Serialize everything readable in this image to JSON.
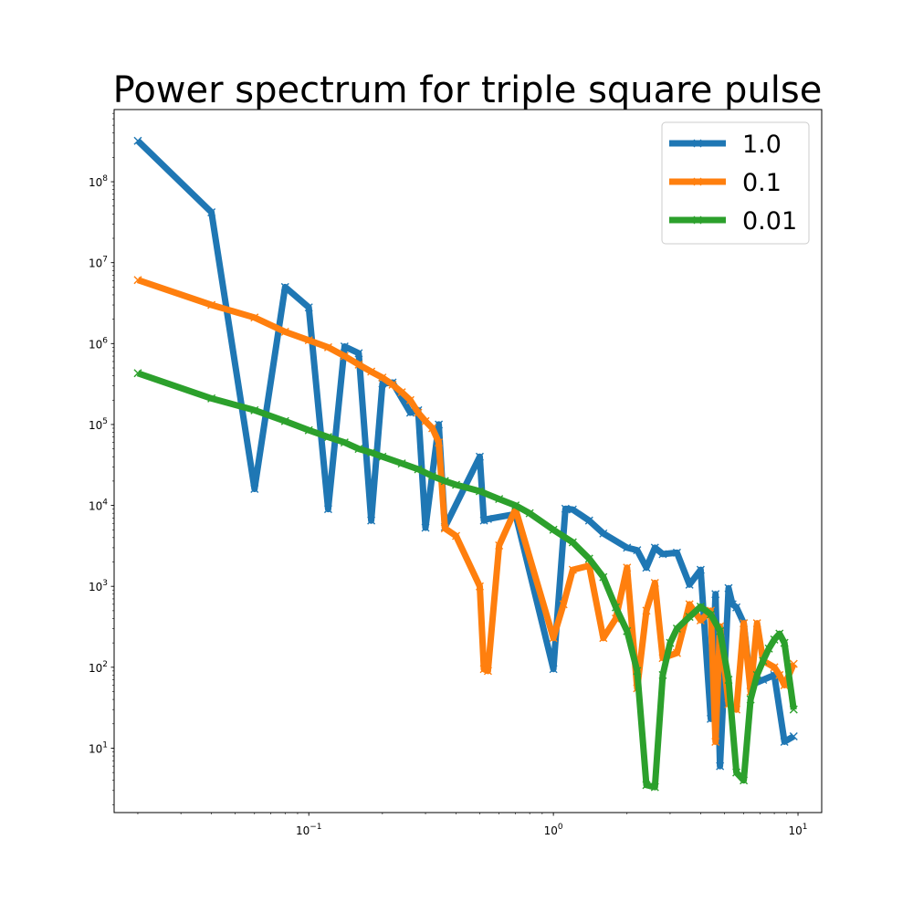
{
  "chart_data": {
    "type": "line",
    "title": "Power spectrum for triple square pulse",
    "xlabel": "",
    "ylabel": "",
    "xscale": "log",
    "yscale": "log",
    "xlim": [
      0.016,
      12.5
    ],
    "ylim": [
      1.6,
      780000000
    ],
    "grid": false,
    "legend_position": "top-right",
    "marker": "x",
    "x_ticks": [
      {
        "value": 0.1,
        "base": "10",
        "exp": "−1"
      },
      {
        "value": 1,
        "base": "10",
        "exp": "0"
      },
      {
        "value": 10,
        "base": "10",
        "exp": "1"
      }
    ],
    "y_ticks": [
      {
        "value": 10,
        "base": "10",
        "exp": "1"
      },
      {
        "value": 100,
        "base": "10",
        "exp": "2"
      },
      {
        "value": 1000,
        "base": "10",
        "exp": "3"
      },
      {
        "value": 10000,
        "base": "10",
        "exp": "4"
      },
      {
        "value": 100000,
        "base": "10",
        "exp": "5"
      },
      {
        "value": 1000000,
        "base": "10",
        "exp": "6"
      },
      {
        "value": 10000000,
        "base": "10",
        "exp": "7"
      },
      {
        "value": 100000000,
        "base": "10",
        "exp": "8"
      }
    ],
    "series": [
      {
        "name": "1.0",
        "color": "#1f77b4",
        "x": [
          0.02,
          0.04,
          0.06,
          0.08,
          0.1,
          0.12,
          0.14,
          0.16,
          0.18,
          0.2,
          0.22,
          0.26,
          0.28,
          0.3,
          0.34,
          0.36,
          0.5,
          0.52,
          0.54,
          0.7,
          1.0,
          1.12,
          1.2,
          1.4,
          1.6,
          2.0,
          2.2,
          2.4,
          2.6,
          2.8,
          3.2,
          3.6,
          4.0,
          4.4,
          4.6,
          4.8,
          5.2,
          5.4,
          5.6,
          6.0,
          6.4,
          7.2,
          8.0,
          8.8,
          9.6
        ],
        "y": [
          320000000,
          42000000,
          16000,
          5000000,
          2800000,
          9000,
          920000,
          760000,
          6500,
          320000,
          330000,
          140000,
          150000,
          5300,
          100000,
          5400,
          40000,
          6500,
          6800,
          7800,
          95,
          9100,
          8900,
          6500,
          4500,
          3000,
          2800,
          1700,
          3000,
          2500,
          2600,
          1050,
          1600,
          23,
          800,
          6,
          950,
          600,
          550,
          350,
          60,
          70,
          80,
          12,
          14
        ]
      },
      {
        "name": "0.1",
        "color": "#ff7f0e",
        "x": [
          0.02,
          0.04,
          0.06,
          0.08,
          0.1,
          0.12,
          0.14,
          0.16,
          0.18,
          0.2,
          0.22,
          0.24,
          0.26,
          0.28,
          0.3,
          0.32,
          0.34,
          0.36,
          0.4,
          0.5,
          0.52,
          0.54,
          0.6,
          0.7,
          1.0,
          1.1,
          1.2,
          1.4,
          1.6,
          1.8,
          2.0,
          2.2,
          2.4,
          2.6,
          2.8,
          3.2,
          3.6,
          4.0,
          4.4,
          4.6,
          4.8,
          5.2,
          5.6,
          6.0,
          6.4,
          6.8,
          7.2,
          8.0,
          8.4,
          8.8,
          9.6
        ],
        "y": [
          6100000,
          3000000,
          2100000,
          1400000,
          1100000,
          900000,
          700000,
          550000,
          450000,
          380000,
          310000,
          250000,
          200000,
          140000,
          110000,
          90000,
          60000,
          5200,
          4200,
          1000,
          95,
          90,
          3200,
          9000,
          230,
          600,
          1600,
          1800,
          230,
          400,
          1700,
          55,
          500,
          1100,
          130,
          150,
          600,
          380,
          500,
          12,
          320,
          35,
          30,
          350,
          50,
          350,
          120,
          100,
          80,
          60,
          110
        ]
      },
      {
        "name": "0.01",
        "color": "#2ca02c",
        "x": [
          0.02,
          0.04,
          0.06,
          0.08,
          0.1,
          0.12,
          0.14,
          0.16,
          0.18,
          0.2,
          0.24,
          0.28,
          0.32,
          0.36,
          0.4,
          0.5,
          0.6,
          0.7,
          0.8,
          1.0,
          1.2,
          1.4,
          1.6,
          1.8,
          2.0,
          2.2,
          2.4,
          2.6,
          2.8,
          3.0,
          3.2,
          3.6,
          4.0,
          4.4,
          4.8,
          5.2,
          5.6,
          6.0,
          6.4,
          6.8,
          7.2,
          7.6,
          8.0,
          8.4,
          8.8,
          9.6
        ],
        "y": [
          430000,
          210000,
          150000,
          110000,
          85000,
          70000,
          60000,
          50000,
          45000,
          40000,
          33000,
          28000,
          23000,
          20000,
          18000,
          15000,
          12000,
          10000,
          8000,
          5000,
          3500,
          2200,
          1300,
          550,
          280,
          90,
          3.5,
          3.3,
          80,
          200,
          300,
          420,
          560,
          450,
          280,
          70,
          5,
          4,
          40,
          80,
          120,
          170,
          220,
          260,
          200,
          30
        ]
      }
    ]
  }
}
